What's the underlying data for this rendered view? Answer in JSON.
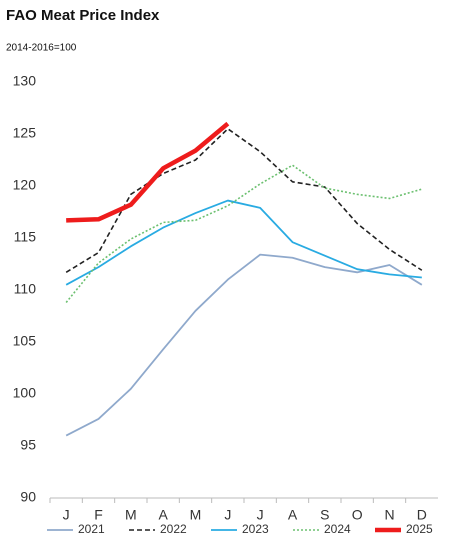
{
  "chart_data": {
    "type": "line",
    "title": "FAO Meat Price Index",
    "subtitle": "2014-2016=100",
    "categories": [
      "J",
      "F",
      "M",
      "A",
      "M",
      "J",
      "J",
      "A",
      "S",
      "O",
      "N",
      "D"
    ],
    "series": [
      {
        "name": "2021",
        "color": "#8fa9cc",
        "style": "solid",
        "width": 1.8,
        "values": [
          96.0,
          97.6,
          100.5,
          104.3,
          108.0,
          111.0,
          113.4,
          113.1,
          112.2,
          111.7,
          112.4,
          110.5
        ]
      },
      {
        "name": "2022",
        "color": "#222222",
        "style": "dashed",
        "width": 1.6,
        "values": [
          111.7,
          113.6,
          119.2,
          121.2,
          122.5,
          125.5,
          123.3,
          120.4,
          119.9,
          116.4,
          113.9,
          111.9
        ]
      },
      {
        "name": "2023",
        "color": "#29abe2",
        "style": "solid",
        "width": 1.8,
        "values": [
          110.5,
          112.2,
          114.2,
          116.0,
          117.4,
          118.6,
          117.9,
          114.6,
          113.3,
          112.0,
          111.5,
          111.2
        ]
      },
      {
        "name": "2024",
        "color": "#6cc070",
        "style": "dotted",
        "width": 1.6,
        "values": [
          108.8,
          112.6,
          114.9,
          116.5,
          116.7,
          118.1,
          120.2,
          122.0,
          119.8,
          119.2,
          118.8,
          119.7
        ]
      },
      {
        "name": "2025",
        "color": "#ee1c1c",
        "style": "solid",
        "width": 4.5,
        "values": [
          116.7,
          116.8,
          118.2,
          121.7,
          123.4,
          126.0,
          null,
          null,
          null,
          null,
          null,
          null
        ]
      }
    ],
    "ylim": [
      90,
      130
    ],
    "yticks": [
      90,
      95,
      100,
      105,
      110,
      115,
      120,
      125,
      130
    ],
    "grid": false,
    "legend": "bottom"
  }
}
